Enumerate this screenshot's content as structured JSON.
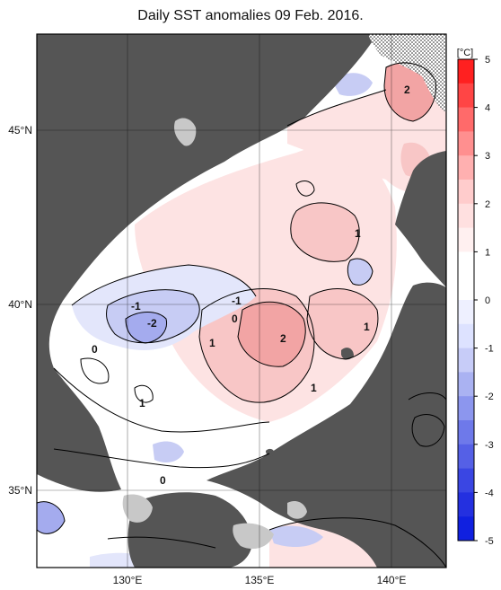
{
  "title": "Daily SST anomalies 09 Feb. 2016.",
  "colors": {
    "land": "#555555",
    "land_mask_gray": "#c8c8c8",
    "ocean_neutral": "#ffffff",
    "pos1": "#fde3e3",
    "pos2": "#f8c6c6",
    "pos3": "#f2a4a4",
    "pos4": "#ea7a7a",
    "neg1": "#e3e6fb",
    "neg2": "#c7ccf4",
    "neg3": "#a4abee",
    "neg4": "#7a84e8",
    "neg5": "#4450e0"
  },
  "map": {
    "lon_ticks": [
      "130°E",
      "135°E",
      "140°E"
    ],
    "lat_ticks": [
      "45°N",
      "40°N",
      "35°N"
    ],
    "contour_labels": [
      "2",
      "1",
      "-1",
      "-1",
      "-2",
      "0",
      "0",
      "1",
      "2",
      "1",
      "0",
      "1",
      "1",
      "0"
    ]
  },
  "colorbar": {
    "unit": "[°C]",
    "ticks": [
      "5",
      "4",
      "3",
      "2",
      "1",
      "0",
      "-1",
      "-2",
      "-3",
      "-4",
      "-5"
    ],
    "colors_top_to_bottom": [
      "#ff2020",
      "#ff4545",
      "#ff6a6a",
      "#ff8f8f",
      "#ffb0b0",
      "#ffcccc",
      "#ffe0e0",
      "#fff0f0",
      "#ffffff",
      "#ffffff",
      "#eef0ff",
      "#dde2ff",
      "#c7ccf8",
      "#aab2f2",
      "#8c96ee",
      "#6e79ea",
      "#5560e6",
      "#3a46e3",
      "#2430e0",
      "#1020e0"
    ]
  }
}
